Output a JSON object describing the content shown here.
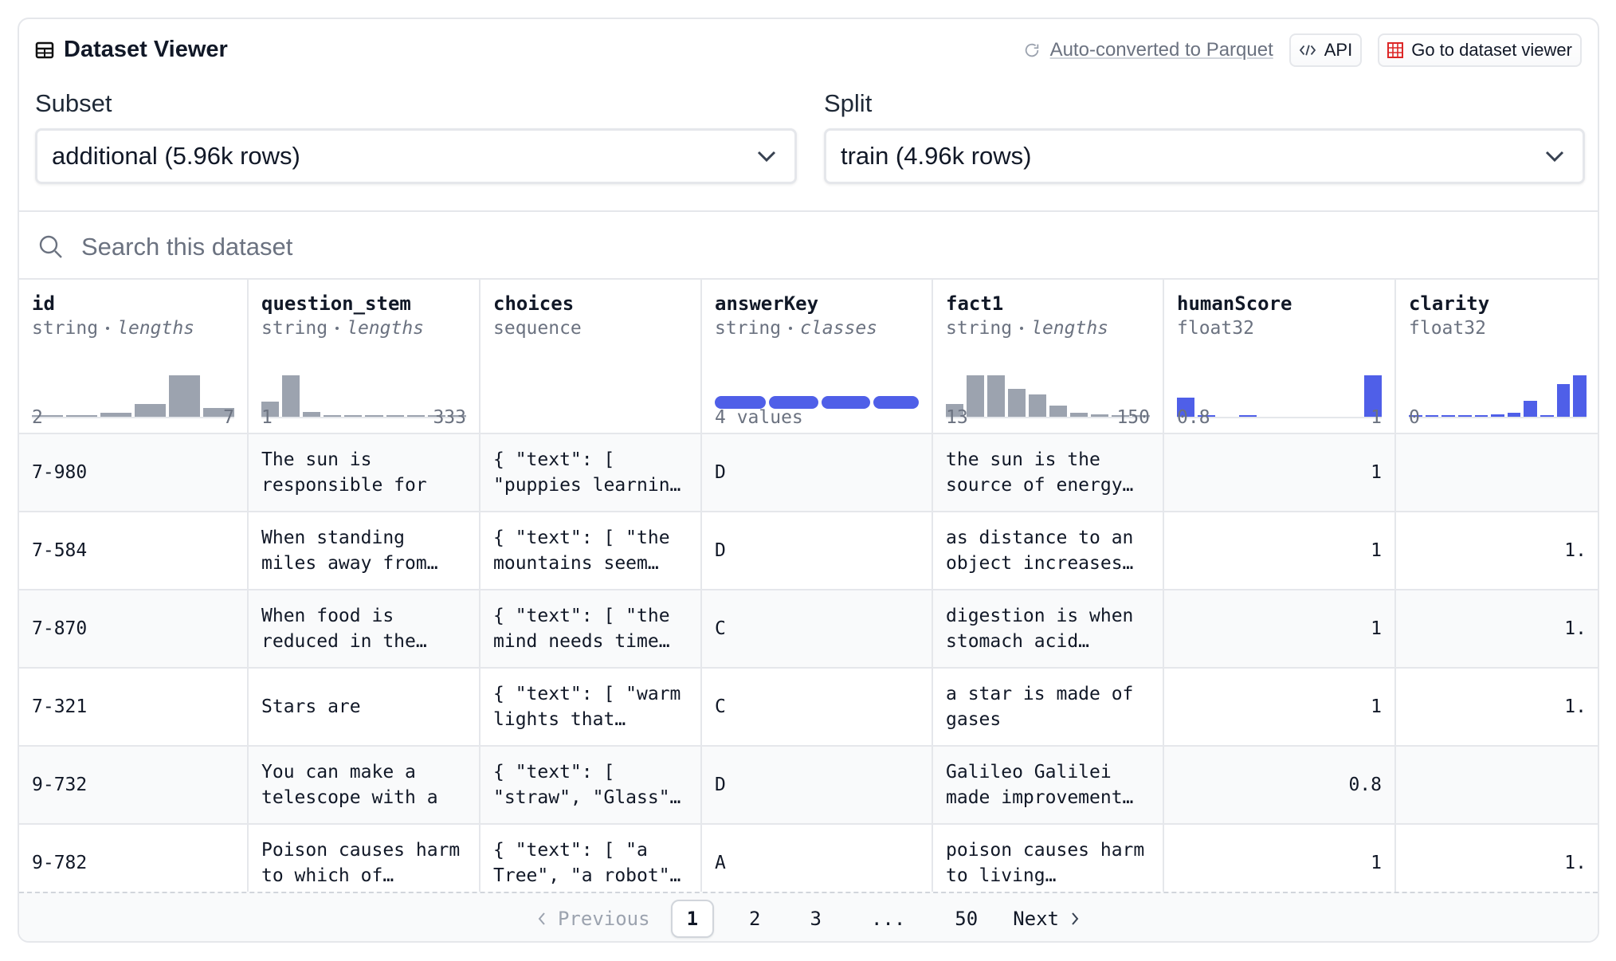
{
  "header": {
    "title": "Dataset Viewer",
    "parquet": "Auto-converted to Parquet",
    "api": "API",
    "viewer": "Go to dataset viewer"
  },
  "subset": {
    "label": "Subset",
    "value": "additional (5.96k rows)"
  },
  "split": {
    "label": "Split",
    "value": "train (4.96k rows)"
  },
  "search": {
    "placeholder": "Search this dataset"
  },
  "table": {
    "columns": [
      {
        "name": "id",
        "type": "string",
        "stat": "lengths",
        "histogram": [
          1,
          1,
          3,
          10,
          33,
          7
        ],
        "range": [
          "2",
          "7"
        ]
      },
      {
        "name": "question_stem",
        "type": "string",
        "stat": "lengths",
        "histogram": [
          12,
          33,
          4,
          1,
          1,
          1,
          1,
          1,
          1,
          1
        ],
        "range": [
          "1",
          "333"
        ]
      },
      {
        "name": "choices",
        "type": "sequence"
      },
      {
        "name": "answerKey",
        "type": "string",
        "stat": "classes",
        "classes": [
          25,
          24,
          24,
          22
        ],
        "range": [
          "4 values"
        ]
      },
      {
        "name": "fact1",
        "type": "string",
        "stat": "lengths",
        "histogram": [
          10,
          33,
          33,
          22,
          18,
          9,
          3,
          2,
          1,
          1
        ],
        "range": [
          "13",
          "150"
        ]
      },
      {
        "name": "humanScore",
        "type": "float32",
        "histogram": [
          15,
          1,
          0,
          1,
          0,
          0,
          0,
          0,
          0,
          33
        ],
        "range": [
          "0.8",
          "1"
        ]
      },
      {
        "name": "clarity",
        "type": "float32",
        "histogram": [
          1,
          1,
          1,
          1,
          1,
          2,
          3,
          13,
          1,
          26,
          33
        ],
        "range": [
          "0"
        ]
      }
    ],
    "rows": [
      [
        "7-980",
        "The sun is responsible for",
        "{ \"text\": [ \"puppies learnin…",
        "D",
        "the sun is the source of energy…",
        "1",
        ""
      ],
      [
        "7-584",
        "When standing miles away from…",
        "{ \"text\": [ \"the mountains seem…",
        "D",
        "as distance to an object increases…",
        "1",
        "1."
      ],
      [
        "7-870",
        "When food is reduced in the…",
        "{ \"text\": [ \"the mind needs time…",
        "C",
        "digestion is when stomach acid…",
        "1",
        "1."
      ],
      [
        "7-321",
        "Stars are",
        "{ \"text\": [ \"warm lights that…",
        "C",
        "a star is made of gases",
        "1",
        "1."
      ],
      [
        "9-732",
        "You can make a telescope with a",
        "{ \"text\": [ \"straw\", \"Glass\"…",
        "D",
        "Galileo Galilei made improvement…",
        "0.8",
        ""
      ],
      [
        "9-782",
        "Poison causes harm to which of…",
        "{ \"text\": [ \"a Tree\", \"a robot\"…",
        "A",
        "poison causes harm to living…",
        "1",
        "1."
      ]
    ]
  },
  "pagination": {
    "previous": "Previous",
    "pages": [
      "1",
      "2",
      "3",
      "...",
      "50"
    ],
    "next": "Next"
  }
}
